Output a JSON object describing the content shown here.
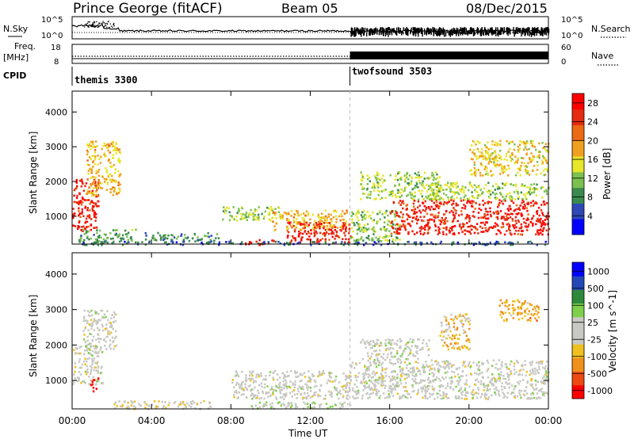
{
  "header": {
    "station": "Prince George (fitACF)",
    "beam": "Beam 05",
    "date": "08/Dec/2015"
  },
  "sky_panel": {
    "left_label": "N.Sky",
    "right_label": "N.Search",
    "left_ticks": [
      "10^5",
      "10^0"
    ],
    "right_ticks": [
      "10^5",
      "10^0"
    ]
  },
  "freq_panel": {
    "left_label_1": "Freq.",
    "left_label_2": "[MHz]",
    "right_label": "Nave",
    "left_ticks": [
      "18",
      "8"
    ],
    "right_ticks": [
      "60",
      "0"
    ]
  },
  "cpid_panel": {
    "label": "CPID",
    "modes": [
      {
        "name": "themis 3300",
        "start_hour": 0
      },
      {
        "name": "twofsound 3503",
        "start_hour": 14
      }
    ]
  },
  "time_axis": {
    "label": "Time UT",
    "ticks": [
      "00:00",
      "04:00",
      "08:00",
      "12:00",
      "16:00",
      "20:00",
      "00:00"
    ]
  },
  "chart_data": [
    {
      "type": "heatmap",
      "title": "Power",
      "ylabel": "Slant Range [km]",
      "yticks": [
        1000,
        2000,
        3000,
        4000
      ],
      "ylim": [
        200,
        4600
      ],
      "xlim_hours": [
        0,
        24
      ],
      "colorbar": {
        "label": "Power [dB]",
        "ticks": [
          4,
          8,
          12,
          16,
          20,
          24,
          28
        ],
        "range": [
          0,
          30
        ],
        "colors": [
          "#0000ff",
          "#2e48b8",
          "#3a8a4e",
          "#7cc050",
          "#e6e62a",
          "#f0a020",
          "#ec6a14",
          "#e52a10",
          "#ff0000"
        ]
      },
      "regions": [
        {
          "t": [
            0.0,
            1.3
          ],
          "r": [
            600,
            2100
          ],
          "v": 26
        },
        {
          "t": [
            0.7,
            2.4
          ],
          "r": [
            1600,
            3200
          ],
          "v": 17
        },
        {
          "t": [
            0.3,
            3.2
          ],
          "r": [
            250,
            650
          ],
          "v": 10
        },
        {
          "t": [
            3.5,
            7.5
          ],
          "r": [
            300,
            550
          ],
          "v": 9
        },
        {
          "t": [
            7.5,
            10.5
          ],
          "r": [
            900,
            1300
          ],
          "v": 13
        },
        {
          "t": [
            8.6,
            10.2
          ],
          "r": [
            200,
            360
          ],
          "v": 27
        },
        {
          "t": [
            10.0,
            13.8
          ],
          "r": [
            600,
            1200
          ],
          "v": 17
        },
        {
          "t": [
            10.8,
            14.0
          ],
          "r": [
            250,
            850
          ],
          "v": 26
        },
        {
          "t": [
            14.0,
            16.5
          ],
          "r": [
            300,
            1200
          ],
          "v": 12
        },
        {
          "t": [
            14.5,
            18.5
          ],
          "r": [
            1500,
            2300
          ],
          "v": 13
        },
        {
          "t": [
            16.0,
            24.0
          ],
          "r": [
            500,
            1500
          ],
          "v": 26
        },
        {
          "t": [
            18.0,
            24.0
          ],
          "r": [
            1500,
            2000
          ],
          "v": 13
        },
        {
          "t": [
            20.0,
            24.0
          ],
          "r": [
            2200,
            3200
          ],
          "v": 16
        },
        {
          "t": [
            0.2,
            24.0
          ],
          "r": [
            200,
            300
          ],
          "v": 6
        }
      ]
    },
    {
      "type": "heatmap",
      "title": "Velocity",
      "ylabel": "Slant Range [km]",
      "yticks": [
        1000,
        2000,
        3000,
        4000
      ],
      "ylim": [
        200,
        4600
      ],
      "xlim_hours": [
        0,
        24
      ],
      "colorbar": {
        "label": "Velocity [m s^-1]",
        "ticks": [
          1000,
          500,
          100,
          25,
          -25,
          -100,
          -500,
          -1000
        ],
        "range": [
          -1000,
          1000
        ],
        "colors": [
          "#ff0000",
          "#ec4a12",
          "#f0901c",
          "#f0c020",
          "#c8c8c4",
          "#c8c8c4",
          "#7ed04a",
          "#2e8a3a",
          "#2448b8",
          "#0000ff"
        ]
      },
      "regions": [
        {
          "t": [
            0.0,
            1.5
          ],
          "r": [
            900,
            2000
          ],
          "v": 0
        },
        {
          "t": [
            0.9,
            1.3
          ],
          "r": [
            700,
            1100
          ],
          "v": -900
        },
        {
          "t": [
            0.5,
            2.2
          ],
          "r": [
            1900,
            3000
          ],
          "v": 10
        },
        {
          "t": [
            2.0,
            7.0
          ],
          "r": [
            220,
            450
          ],
          "v": -150
        },
        {
          "t": [
            8.0,
            14.0
          ],
          "r": [
            500,
            1300
          ],
          "v": 0
        },
        {
          "t": [
            9.0,
            14.0
          ],
          "r": [
            230,
            420
          ],
          "v": 150
        },
        {
          "t": [
            14.0,
            24.0
          ],
          "r": [
            500,
            1600
          ],
          "v": 0
        },
        {
          "t": [
            14.5,
            18.0
          ],
          "r": [
            1600,
            2200
          ],
          "v": 0
        },
        {
          "t": [
            18.5,
            20.0
          ],
          "r": [
            1900,
            2900
          ],
          "v": -300
        },
        {
          "t": [
            21.5,
            23.5
          ],
          "r": [
            2700,
            3300
          ],
          "v": -400
        }
      ]
    }
  ]
}
